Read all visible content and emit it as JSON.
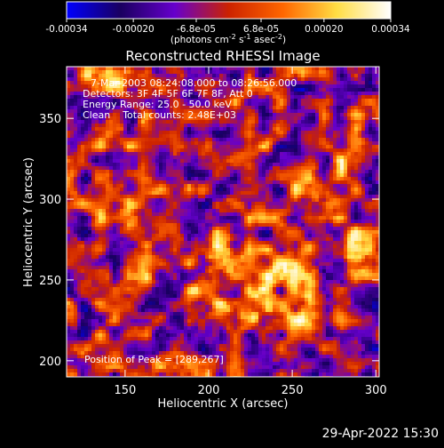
{
  "chart_data": {
    "type": "heatmap",
    "title": "Reconstructed RHESSI Image",
    "xlabel": "Heliocentric X (arcsec)",
    "ylabel": "Heliocentric Y (arcsec)",
    "xlim": [
      115,
      302
    ],
    "ylim": [
      190,
      382
    ],
    "x_ticks": [
      "150",
      "200",
      "250",
      "300"
    ],
    "y_ticks": [
      "200",
      "250",
      "300",
      "350"
    ],
    "x_tick_values": [
      150,
      200,
      250,
      300
    ],
    "y_tick_values": [
      200,
      250,
      300,
      350
    ],
    "colorbar": {
      "ticks": [
        "-0.00034",
        "-0.00020",
        "-6.8e-05",
        "6.8e-05",
        "0.00020",
        "0.00034"
      ],
      "tick_values": [
        -0.00034,
        -0.0002,
        -6.8e-05,
        6.8e-05,
        0.0002,
        0.00034
      ],
      "range": [
        -0.00034,
        0.00034
      ],
      "units": "(photons cm",
      "units_exp1": "-2",
      "units_mid": " s",
      "units_exp2": "-1",
      "units_end": " asec",
      "units_exp3": "-2",
      "units_close": ")",
      "colormap": [
        "#0000ff",
        "#1a0060",
        "#6600cc",
        "#cc2200",
        "#ff6600",
        "#ffdd44",
        "#ffffff"
      ]
    },
    "annotations": [
      "7-Mar-2003 08:24:08.000 to 08:26:56.000",
      "Detectors: 3F 4F 5F 6F 7F 8F, Att 0",
      "Energy Range: 25.0 - 50.0 keV",
      "Clean    Total counts: 2.48E+03"
    ],
    "peak_label": "Position of Peak = [289,267]",
    "peak_position": [
      289,
      267
    ],
    "bright_sources": [
      {
        "x": 289,
        "y": 267,
        "value": 0.00034
      },
      {
        "x": 245,
        "y": 255,
        "value": 0.00028
      },
      {
        "x": 208,
        "y": 262,
        "value": 0.00025
      },
      {
        "x": 268,
        "y": 300,
        "value": 0.00024
      },
      {
        "x": 285,
        "y": 325,
        "value": 0.00022
      },
      {
        "x": 200,
        "y": 240,
        "value": 0.0002
      },
      {
        "x": 228,
        "y": 230,
        "value": 0.00018
      },
      {
        "x": 140,
        "y": 373,
        "value": 0.00016
      },
      {
        "x": 255,
        "y": 230,
        "value": 0.00016
      },
      {
        "x": 150,
        "y": 285,
        "value": 0.00012
      },
      {
        "x": 175,
        "y": 300,
        "value": 0.0001
      },
      {
        "x": 155,
        "y": 245,
        "value": 0.0001
      }
    ]
  },
  "footer": {
    "timestamp": "29-Apr-2022 15:30"
  }
}
